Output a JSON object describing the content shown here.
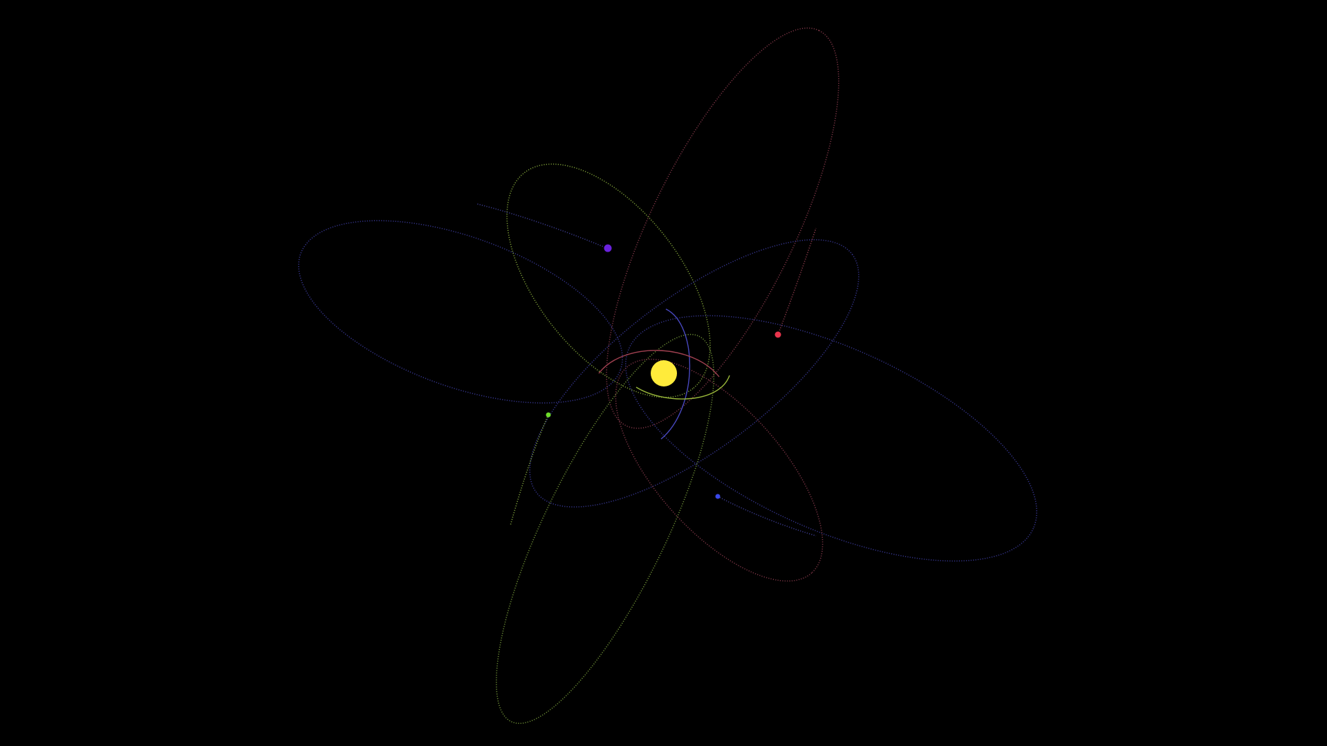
{
  "background_color": "#000000",
  "sun": {
    "icon": "sun-icon",
    "color": "#ffeb3b"
  },
  "bodies": [
    {
      "name": "planet-purple",
      "color": "#6a22dd",
      "orbit_color": "#3a3a8c"
    },
    {
      "name": "planet-red",
      "color": "#e8344c",
      "orbit_color": "#8a3a4a"
    },
    {
      "name": "planet-green",
      "color": "#6edc2a",
      "orbit_color": "#7a9a3a"
    },
    {
      "name": "planet-blue",
      "color": "#3a48e8",
      "orbit_color": "#3a3a8c"
    },
    {
      "name": "comet-inner",
      "orbit_color": "#8a3a4a"
    }
  ]
}
